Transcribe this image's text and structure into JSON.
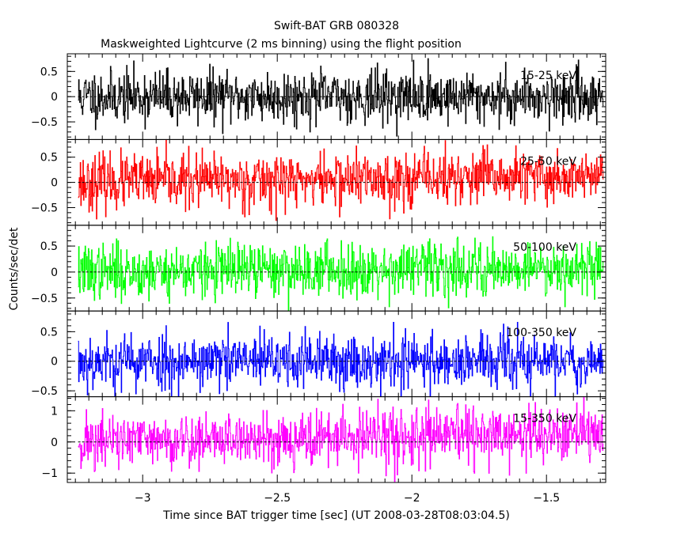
{
  "chart_data": {
    "type": "line",
    "title": "Swift-BAT GRB 080328",
    "subtitle": "Maskweighted Lightcurve (2 ms binning) using the flight position",
    "xlabel": "Time since BAT trigger time [sec] (UT 2008-03-28T08:03:04.5)",
    "ylabel": "Counts/sec/det",
    "xlim": [
      -3.28,
      -1.28
    ],
    "x_data_range": [
      -3.24,
      -1.29
    ],
    "xticks": [
      -3,
      -2.5,
      -2,
      -1.5
    ],
    "xtick_labels": [
      "−3",
      "−2.5",
      "−2",
      "−1.5"
    ],
    "grid": false,
    "panels": [
      {
        "label": "15-25 keV",
        "color": "#000000",
        "ylim": [
          -0.85,
          0.85
        ],
        "yticks": [
          0.5,
          0,
          -0.5
        ],
        "ytick_labels": [
          "0.5",
          "0",
          "−0.5"
        ],
        "noise_sigma": 0.26,
        "trend": 0.0,
        "seed": 11
      },
      {
        "label": "25-50 keV",
        "color": "#ff0000",
        "ylim": [
          -0.85,
          0.85
        ],
        "yticks": [
          0.5,
          0,
          -0.5
        ],
        "ytick_labels": [
          "0.5",
          "0",
          "−0.5"
        ],
        "noise_sigma": 0.27,
        "trend": 0.12,
        "seed": 23
      },
      {
        "label": "50-100 keV",
        "color": "#00ff00",
        "ylim": [
          -0.75,
          0.9
        ],
        "yticks": [
          0.5,
          0,
          -0.5
        ],
        "ytick_labels": [
          "0.5",
          "0",
          "−0.5"
        ],
        "noise_sigma": 0.26,
        "trend": 0.1,
        "seed": 37
      },
      {
        "label": "100-350 keV",
        "color": "#0000ff",
        "ylim": [
          -0.6,
          0.85
        ],
        "yticks": [
          0.5,
          0,
          -0.5
        ],
        "ytick_labels": [
          "0.5",
          "0",
          "−0.5"
        ],
        "noise_sigma": 0.24,
        "trend": 0.0,
        "seed": 53
      },
      {
        "label": "15-350 keV",
        "color": "#ff00ff",
        "ylim": [
          -1.3,
          1.45
        ],
        "yticks": [
          1,
          0,
          -1
        ],
        "ytick_labels": [
          "1",
          "0",
          "−1"
        ],
        "noise_sigma": 0.45,
        "trend": 0.25,
        "seed": 71
      }
    ]
  }
}
